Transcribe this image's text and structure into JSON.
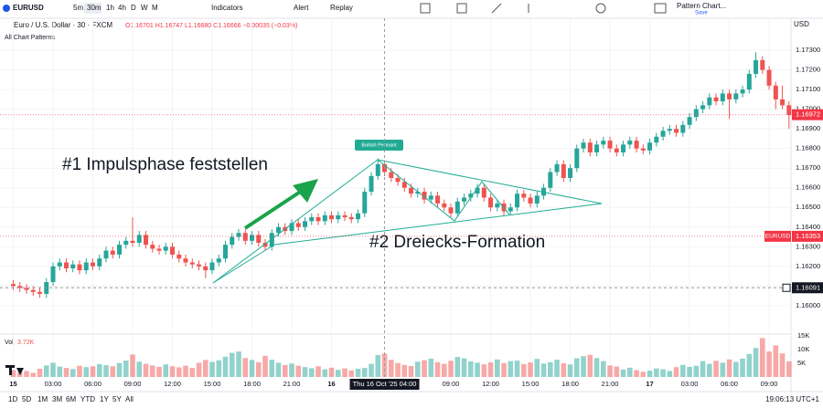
{
  "toolbar": {
    "symbol": "EURUSD",
    "intervals": [
      "5m",
      "30m",
      "1h",
      "4h",
      "D",
      "W",
      "M"
    ],
    "indicators": "Indicators",
    "alert": "Alert",
    "replay": "Replay",
    "layout": "Pattern Chart...",
    "save": "Save"
  },
  "legend": {
    "name": "Euro / U.S. Dollar · 30 · FXCM",
    "ohlc": "O1.16701 H1.16747 L1.16680 C1.16666 −0.00035 (−0.03%)",
    "patterns": "All Chart Patterns",
    "vol": "Vol",
    "vol_value": "3.72K"
  },
  "bottom_bar": {
    "ranges": [
      "1D",
      "5D",
      "1M",
      "3M",
      "6M",
      "YTD",
      "1Y",
      "5Y",
      "All"
    ],
    "clock": "19:06:13 UTC+1"
  },
  "chart_data": {
    "type": "candlestick",
    "currency": "USD",
    "annotations": {
      "impulse": "#1 Impulsphase feststellen",
      "triangle": "#2 Dreiecks-Formation",
      "pennant": "Bullish Pennant"
    },
    "xlim": [
      -2,
      117.3
    ],
    "xticks": [
      {
        "value": 0,
        "label": "15"
      },
      {
        "value": 6,
        "label": "03:00"
      },
      {
        "value": 12,
        "label": "06:00"
      },
      {
        "value": 18,
        "label": "09:00"
      },
      {
        "value": 24,
        "label": "12:00"
      },
      {
        "value": 30,
        "label": "15:00"
      },
      {
        "value": 36,
        "label": "18:00"
      },
      {
        "value": 42,
        "label": "21:00"
      },
      {
        "value": 48,
        "label": "16"
      },
      {
        "value": 66,
        "label": "09:00"
      },
      {
        "value": 72,
        "label": "12:00"
      },
      {
        "value": 78,
        "label": "15:00"
      },
      {
        "value": 84,
        "label": "18:00"
      },
      {
        "value": 90,
        "label": "21:00"
      },
      {
        "value": 96,
        "label": "17"
      },
      {
        "value": 102,
        "label": "03:00"
      },
      {
        "value": 108,
        "label": "06:00"
      },
      {
        "value": 114,
        "label": "09:00"
      }
    ],
    "crosshair": {
      "x": {
        "value": 56,
        "label": "Thu 16 Oct '25  04:00"
      },
      "y": {
        "value": 1.16091,
        "label": "1.16091"
      }
    },
    "ylim": [
      1.1586,
      1.1737
    ],
    "yticks": [
      {
        "value": 1.16,
        "label": "1.16000"
      },
      {
        "value": 1.161,
        "label": "1.16100"
      },
      {
        "value": 1.162,
        "label": "1.16200"
      },
      {
        "value": 1.163,
        "label": "1.16300"
      },
      {
        "value": 1.164,
        "label": "1.16400"
      },
      {
        "value": 1.165,
        "label": "1.16500"
      },
      {
        "value": 1.166,
        "label": "1.16600"
      },
      {
        "value": 1.167,
        "label": "1.16700"
      },
      {
        "value": 1.168,
        "label": "1.16800"
      },
      {
        "value": 1.169,
        "label": "1.16900"
      },
      {
        "value": 1.17,
        "label": "1.17000"
      },
      {
        "value": 1.171,
        "label": "1.17100"
      },
      {
        "value": 1.172,
        "label": "1.17200"
      },
      {
        "value": 1.173,
        "label": "1.17300"
      }
    ],
    "markers": [
      {
        "name": "EURUSD",
        "value": 1.16353,
        "label": "1.16353",
        "color": "#f23645"
      },
      {
        "value": 1.16972,
        "label": "1.16972",
        "color": "#f23645"
      }
    ],
    "volume_ylim": [
      0,
      16000
    ],
    "volume_ticks": [
      {
        "value": 5000,
        "label": "5K"
      },
      {
        "value": 10000,
        "label": "10K"
      },
      {
        "value": 15000,
        "label": "15K"
      }
    ],
    "grid": true,
    "up_color": "#26a69a",
    "down_color": "#ef5350",
    "open": [
      1.1611,
      1.161,
      1.1609,
      1.1608,
      1.1607,
      1.1606,
      1.1612,
      1.162,
      1.1622,
      1.1619,
      1.1621,
      1.1618,
      1.1622,
      1.162,
      1.1624,
      1.1628,
      1.1626,
      1.1631,
      1.1633,
      1.1632,
      1.1636,
      1.1631,
      1.1629,
      1.1628,
      1.163,
      1.1626,
      1.1624,
      1.1622,
      1.1621,
      1.162,
      1.1618,
      1.1622,
      1.1624,
      1.1631,
      1.1635,
      1.1637,
      1.1633,
      1.1636,
      1.1632,
      1.163,
      1.1637,
      1.164,
      1.1638,
      1.1642,
      1.164,
      1.1643,
      1.1645,
      1.1643,
      1.1646,
      1.1644,
      1.1646,
      1.1645,
      1.1644,
      1.1647,
      1.1658,
      1.1666,
      1.1672,
      1.1668,
      1.1665,
      1.1663,
      1.166,
      1.1657,
      1.1658,
      1.1654,
      1.1656,
      1.1652,
      1.165,
      1.1647,
      1.1653,
      1.1655,
      1.1657,
      1.166,
      1.1655,
      1.165,
      1.1652,
      1.1648,
      1.165,
      1.1657,
      1.1655,
      1.1652,
      1.1656,
      1.166,
      1.1668,
      1.1672,
      1.1665,
      1.167,
      1.168,
      1.1683,
      1.1678,
      1.1682,
      1.1684,
      1.168,
      1.1678,
      1.1682,
      1.1684,
      1.168,
      1.1679,
      1.1683,
      1.1686,
      1.1689,
      1.169,
      1.1688,
      1.1692,
      1.1696,
      1.17,
      1.1702,
      1.1706,
      1.1704,
      1.1708,
      1.1705,
      1.1708,
      1.171,
      1.1718,
      1.1725,
      1.172,
      1.1712,
      1.1705,
      1.1702
    ],
    "high": [
      1.1613,
      1.1612,
      1.1611,
      1.161,
      1.1609,
      1.1614,
      1.1622,
      1.1624,
      1.1624,
      1.1623,
      1.1623,
      1.1624,
      1.1624,
      1.1626,
      1.163,
      1.163,
      1.1633,
      1.1635,
      1.1645,
      1.1638,
      1.1638,
      1.1633,
      1.1631,
      1.1632,
      1.1632,
      1.1628,
      1.1626,
      1.1624,
      1.1623,
      1.1622,
      1.1624,
      1.1626,
      1.1633,
      1.1637,
      1.1639,
      1.1639,
      1.1638,
      1.1638,
      1.1634,
      1.1639,
      1.1642,
      1.1642,
      1.1644,
      1.1644,
      1.1645,
      1.1647,
      1.1647,
      1.1648,
      1.1648,
      1.1648,
      1.1648,
      1.1647,
      1.1649,
      1.166,
      1.1668,
      1.1675,
      1.1674,
      1.167,
      1.1667,
      1.1665,
      1.1662,
      1.166,
      1.166,
      1.1658,
      1.1658,
      1.1654,
      1.1652,
      1.1655,
      1.1657,
      1.1659,
      1.1662,
      1.1662,
      1.1657,
      1.1654,
      1.1654,
      1.1652,
      1.1659,
      1.1659,
      1.1657,
      1.1658,
      1.1662,
      1.167,
      1.1674,
      1.1674,
      1.1672,
      1.1682,
      1.1685,
      1.1685,
      1.1684,
      1.1686,
      1.1686,
      1.1682,
      1.1684,
      1.1686,
      1.1686,
      1.1682,
      1.1685,
      1.1688,
      1.1691,
      1.1692,
      1.1692,
      1.1694,
      1.1698,
      1.1702,
      1.1704,
      1.1708,
      1.1708,
      1.171,
      1.171,
      1.171,
      1.1712,
      1.172,
      1.1729,
      1.1727,
      1.1722,
      1.1714,
      1.1712,
      1.1704
    ],
    "low": [
      1.1608,
      1.1607,
      1.1606,
      1.1605,
      1.1604,
      1.1604,
      1.161,
      1.1618,
      1.1617,
      1.1617,
      1.1616,
      1.1616,
      1.1618,
      1.1618,
      1.1622,
      1.1624,
      1.1624,
      1.1629,
      1.163,
      1.163,
      1.1629,
      1.1627,
      1.1626,
      1.1626,
      1.1624,
      1.1622,
      1.162,
      1.1619,
      1.1618,
      1.1614,
      1.1616,
      1.162,
      1.1622,
      1.1629,
      1.1633,
      1.1631,
      1.1631,
      1.163,
      1.1628,
      1.1628,
      1.1635,
      1.1636,
      1.1636,
      1.1638,
      1.1638,
      1.1641,
      1.1641,
      1.1641,
      1.1642,
      1.1642,
      1.1643,
      1.1642,
      1.1642,
      1.1645,
      1.1656,
      1.1664,
      1.1666,
      1.1663,
      1.1661,
      1.1658,
      1.1655,
      1.1655,
      1.1652,
      1.1652,
      1.165,
      1.1648,
      1.1645,
      1.1645,
      1.1651,
      1.1653,
      1.1655,
      1.1653,
      1.1648,
      1.1648,
      1.1646,
      1.1646,
      1.1648,
      1.1653,
      1.165,
      1.165,
      1.1654,
      1.1658,
      1.1666,
      1.1663,
      1.1663,
      1.1668,
      1.1678,
      1.1676,
      1.1676,
      1.168,
      1.1678,
      1.1676,
      1.1676,
      1.168,
      1.1678,
      1.1677,
      1.1677,
      1.1681,
      1.1684,
      1.1687,
      1.1686,
      1.1686,
      1.169,
      1.1694,
      1.1698,
      1.17,
      1.1702,
      1.1702,
      1.1695,
      1.1703,
      1.1706,
      1.1708,
      1.1716,
      1.1718,
      1.171,
      1.17,
      1.17,
      1.169
    ],
    "close": [
      1.161,
      1.1609,
      1.1608,
      1.1607,
      1.1606,
      1.1612,
      1.162,
      1.1622,
      1.1619,
      1.1621,
      1.1618,
      1.1622,
      1.162,
      1.1624,
      1.1628,
      1.1626,
      1.1631,
      1.1633,
      1.1632,
      1.1636,
      1.1631,
      1.1629,
      1.1628,
      1.163,
      1.1626,
      1.1624,
      1.1622,
      1.1621,
      1.162,
      1.1618,
      1.1622,
      1.1624,
      1.1631,
      1.1635,
      1.1637,
      1.1633,
      1.1636,
      1.1632,
      1.163,
      1.1637,
      1.164,
      1.1638,
      1.1642,
      1.164,
      1.1643,
      1.1645,
      1.1643,
      1.1646,
      1.1644,
      1.1646,
      1.1645,
      1.1644,
      1.1647,
      1.1658,
      1.1666,
      1.1672,
      1.1668,
      1.1665,
      1.1663,
      1.166,
      1.1657,
      1.1658,
      1.1654,
      1.1656,
      1.1652,
      1.165,
      1.1647,
      1.1653,
      1.1655,
      1.1657,
      1.166,
      1.1655,
      1.165,
      1.1652,
      1.1648,
      1.165,
      1.1657,
      1.1655,
      1.1652,
      1.1656,
      1.166,
      1.1668,
      1.1672,
      1.1665,
      1.167,
      1.168,
      1.1683,
      1.1678,
      1.1682,
      1.1684,
      1.168,
      1.1678,
      1.1682,
      1.1684,
      1.168,
      1.1679,
      1.1683,
      1.1686,
      1.1689,
      1.169,
      1.1688,
      1.1692,
      1.1696,
      1.17,
      1.1702,
      1.1706,
      1.1704,
      1.1708,
      1.1705,
      1.1708,
      1.171,
      1.1718,
      1.1725,
      1.172,
      1.1712,
      1.1705,
      1.1702,
      1.1697
    ],
    "volume": [
      2500,
      1800,
      2200,
      1500,
      3000,
      4200,
      5200,
      3800,
      3300,
      2900,
      4100,
      3600,
      3900,
      4700,
      4300,
      3900,
      5100,
      6000,
      8200,
      5600,
      4800,
      4200,
      3700,
      4600,
      3900,
      3500,
      4100,
      3300,
      5200,
      6200,
      5500,
      6100,
      7400,
      8800,
      9300,
      6900,
      6200,
      5400,
      7700,
      6300,
      5200,
      4400,
      4900,
      4100,
      3600,
      3200,
      3900,
      2800,
      3400,
      2600,
      3100,
      2400,
      3000,
      3300,
      4800,
      8000,
      8500,
      6300,
      5100,
      4400,
      4000,
      5600,
      6100,
      6700,
      5400,
      4800,
      5900,
      7300,
      6800,
      5700,
      5200,
      4600,
      5300,
      6400,
      5100,
      5800,
      6000,
      4700,
      5300,
      6600,
      4900,
      5400,
      6300,
      5000,
      4600,
      6800,
      7600,
      8100,
      6900,
      5800,
      4200,
      3800,
      2700,
      3400,
      2500,
      1900,
      2300,
      3100,
      2800,
      2200,
      3600,
      4400,
      3700,
      4100,
      5800,
      4800,
      5900,
      5200,
      6400,
      5500,
      6700,
      8400,
      10600,
      14200,
      9300,
      11500,
      8600,
      5700
    ]
  }
}
